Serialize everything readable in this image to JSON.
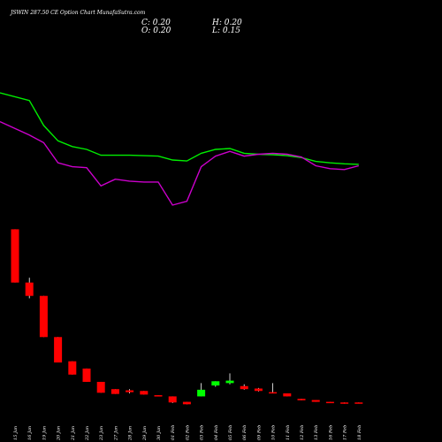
{
  "chart_data": {
    "type": "candlestick",
    "title": "JSWIN 287.50 CE Option  Chart MunafaSutra.com",
    "ohlc": {
      "C": "C: 0.20",
      "H": "H: 0.20",
      "O": "O: 0.20",
      "L": "L: 0.15"
    },
    "categories": [
      "15 Jan",
      "16 Jan",
      "19 Jan",
      "20 Jan",
      "21 Jan",
      "22 Jan",
      "23 Jan",
      "27 Jan",
      "28 Jan",
      "29 Jan",
      "30 Jan",
      "01 Feb",
      "02 Feb",
      "03 Feb",
      "04 Feb",
      "05 Feb",
      "06 Feb",
      "09 Feb",
      "10 Feb",
      "11 Feb",
      "12 Feb",
      "13 Feb",
      "16 Feb",
      "17 Feb",
      "18 Feb"
    ],
    "candles": [
      {
        "o": 14.5,
        "h": 14.5,
        "l": 10.1,
        "c": 10.1
      },
      {
        "o": 10.1,
        "h": 10.5,
        "l": 8.8,
        "c": 9.0
      },
      {
        "o": 9.0,
        "h": 9.0,
        "l": 5.6,
        "c": 5.6
      },
      {
        "o": 5.6,
        "h": 5.6,
        "l": 3.5,
        "c": 3.5
      },
      {
        "o": 3.6,
        "h": 3.6,
        "l": 2.5,
        "c": 2.5
      },
      {
        "o": 3.0,
        "h": 3.0,
        "l": 1.9,
        "c": 1.9
      },
      {
        "o": 1.9,
        "h": 1.9,
        "l": 1.0,
        "c": 1.0
      },
      {
        "o": 1.3,
        "h": 1.3,
        "l": 0.9,
        "c": 0.9
      },
      {
        "o": 1.2,
        "h": 1.3,
        "l": 0.95,
        "c": 1.05
      },
      {
        "o": 1.15,
        "h": 1.15,
        "l": 0.85,
        "c": 0.85
      },
      {
        "o": 0.8,
        "h": 0.8,
        "l": 0.75,
        "c": 0.75
      },
      {
        "o": 0.7,
        "h": 0.7,
        "l": 0.15,
        "c": 0.2
      },
      {
        "o": 0.25,
        "h": 0.25,
        "l": 0.05,
        "c": 0.05
      },
      {
        "o": 0.7,
        "h": 1.8,
        "l": 0.7,
        "c": 1.25
      },
      {
        "o": 1.6,
        "h": 1.95,
        "l": 1.5,
        "c": 1.95
      },
      {
        "o": 1.8,
        "h": 2.6,
        "l": 1.7,
        "c": 2.0
      },
      {
        "o": 1.55,
        "h": 1.7,
        "l": 1.25,
        "c": 1.3
      },
      {
        "o": 1.35,
        "h": 1.4,
        "l": 1.1,
        "c": 1.15
      },
      {
        "o": 1.05,
        "h": 1.8,
        "l": 1.0,
        "c": 1.0
      },
      {
        "o": 0.95,
        "h": 0.95,
        "l": 0.7,
        "c": 0.7
      },
      {
        "o": 0.5,
        "h": 0.5,
        "l": 0.38,
        "c": 0.38
      },
      {
        "o": 0.4,
        "h": 0.4,
        "l": 0.25,
        "c": 0.25
      },
      {
        "o": 0.25,
        "h": 0.25,
        "l": 0.2,
        "c": 0.2
      },
      {
        "o": 0.2,
        "h": 0.2,
        "l": 0.1,
        "c": 0.1
      },
      {
        "o": 0.2,
        "h": 0.2,
        "l": 0.15,
        "c": 0.2
      }
    ],
    "green_line": [
      21.2,
      20.4,
      17.8,
      16.2,
      15.6,
      15.3,
      14.7,
      14.7,
      14.7,
      14.65,
      14.6,
      14.2,
      14.1,
      14.9,
      15.3,
      15.4,
      14.9,
      14.8,
      14.75,
      14.65,
      14.45,
      14.05,
      13.9,
      13.8,
      13.75
    ],
    "magenta_line": [
      18.2,
      16.8,
      16.0,
      13.9,
      13.5,
      13.4,
      11.5,
      12.2,
      12.0,
      11.9,
      11.9,
      9.5,
      9.9,
      13.5,
      14.6,
      15.1,
      14.6,
      14.8,
      14.9,
      14.8,
      14.5,
      13.6,
      13.3,
      13.2,
      13.6
    ],
    "colors": {
      "background": "#000000",
      "up": "#00ff00",
      "down": "#ff0000",
      "wick_up": "#ffffff",
      "wick_down": "#ffffff",
      "green_line": "#00ee00",
      "magenta_line": "#cc00cc",
      "text": "#ffffff"
    }
  }
}
